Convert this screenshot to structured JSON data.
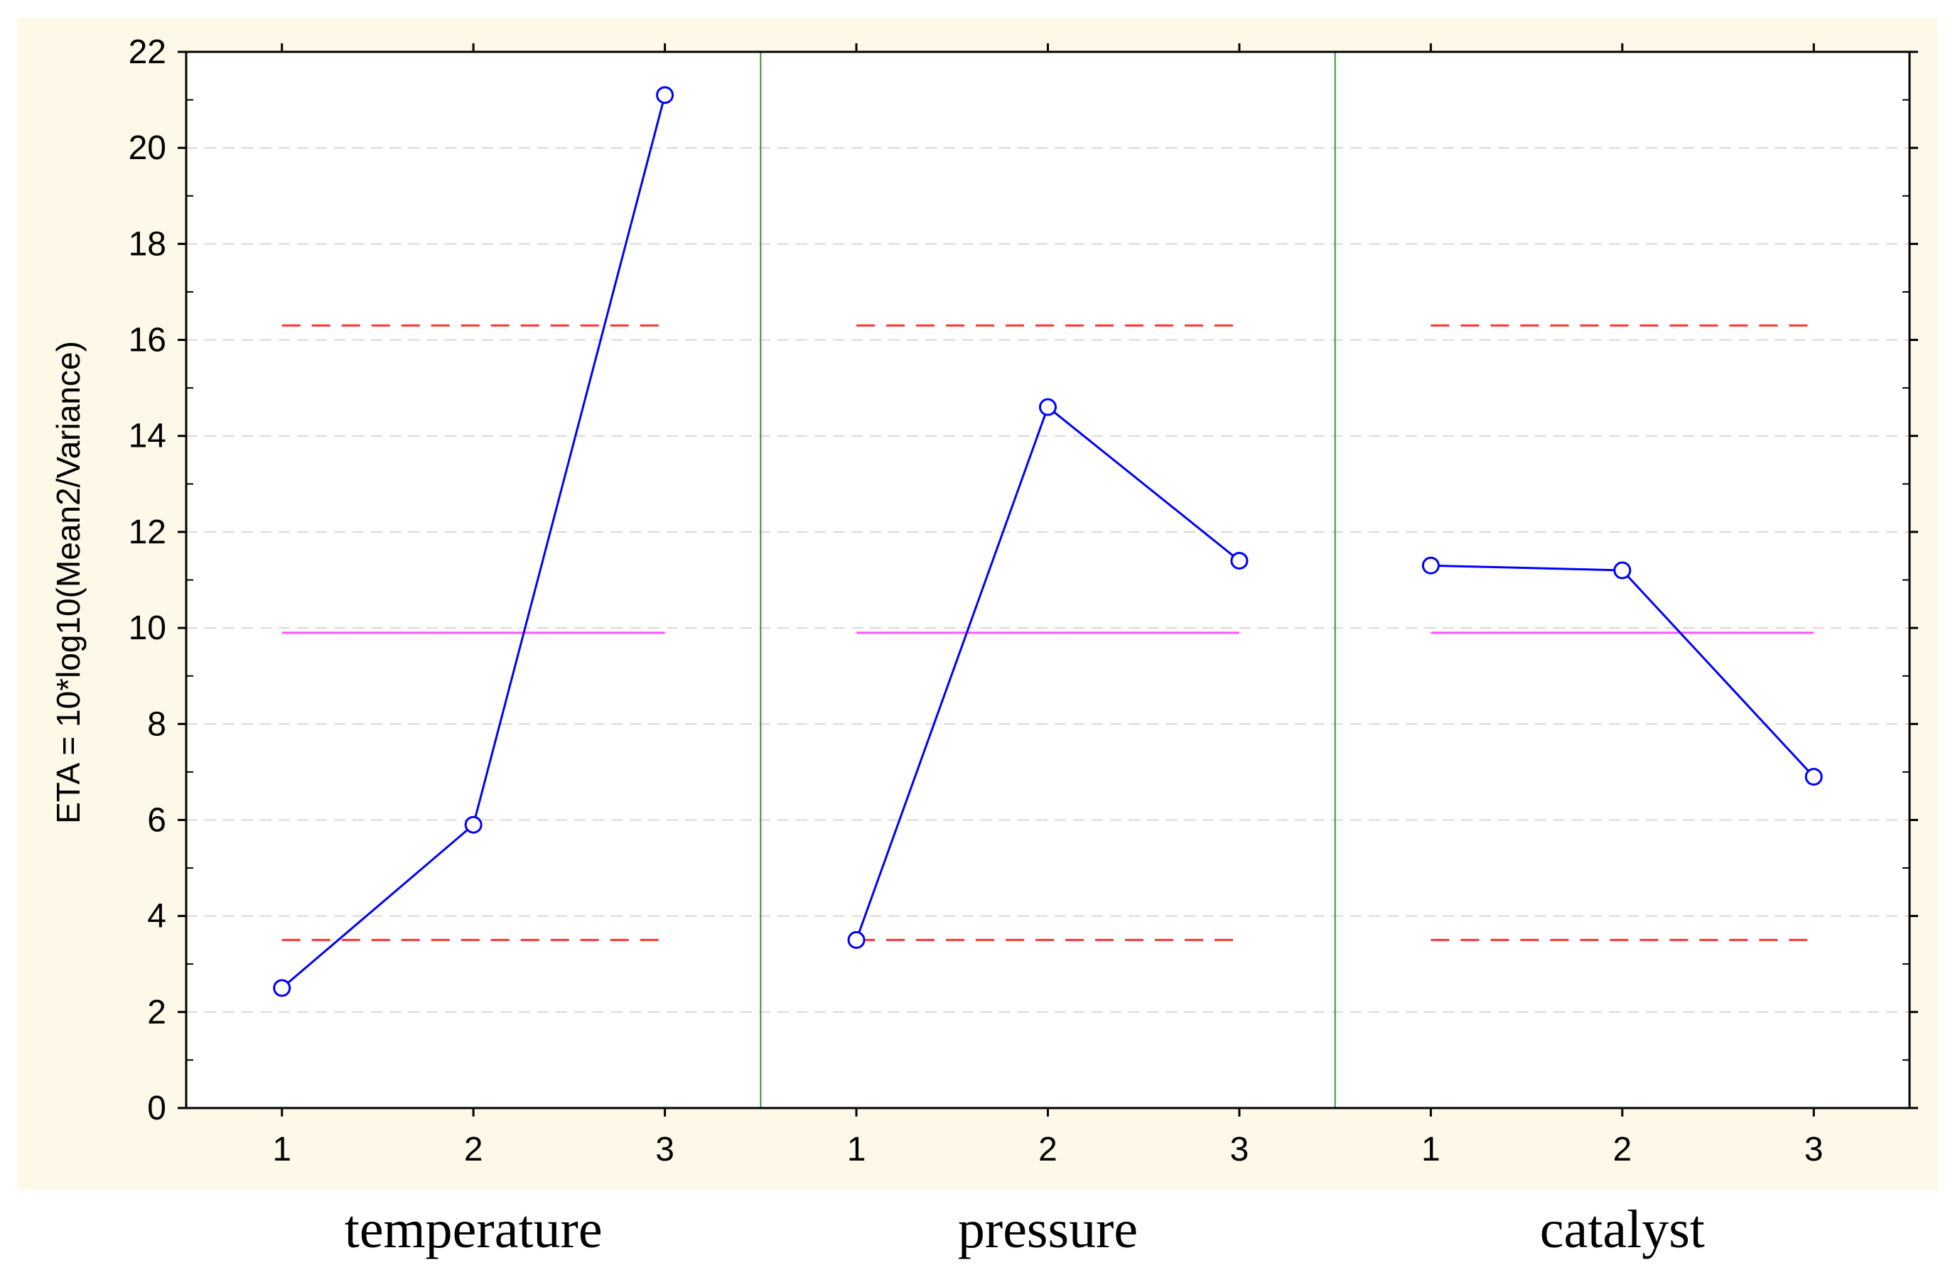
{
  "chart_data": {
    "type": "line",
    "title": "",
    "ylabel": "ETA = 10*log10(Mean2/Variance)",
    "ylim": [
      0,
      22
    ],
    "yticks": [
      0,
      2,
      4,
      6,
      8,
      10,
      12,
      14,
      16,
      18,
      20,
      22
    ],
    "grid": true,
    "levels": [
      "1",
      "2",
      "3"
    ],
    "factors": [
      {
        "name": "temperature",
        "values": [
          2.5,
          5.9,
          21.1
        ]
      },
      {
        "name": "pressure",
        "values": [
          3.5,
          14.6,
          11.4
        ]
      },
      {
        "name": "catalyst",
        "values": [
          11.3,
          11.2,
          6.9
        ]
      }
    ],
    "reference_lines": {
      "mean": 9.9,
      "upper_limit": 16.3,
      "lower_limit": 3.5
    }
  },
  "colors": {
    "background": "#FDF8E8",
    "plot_background": "#FFFFFF",
    "series": "#0000FF",
    "mean_line": "#FF55FF",
    "limit_line": "#FF3333",
    "grid": "#D8D8D8",
    "separator": "#339933",
    "axis": "#000000"
  }
}
